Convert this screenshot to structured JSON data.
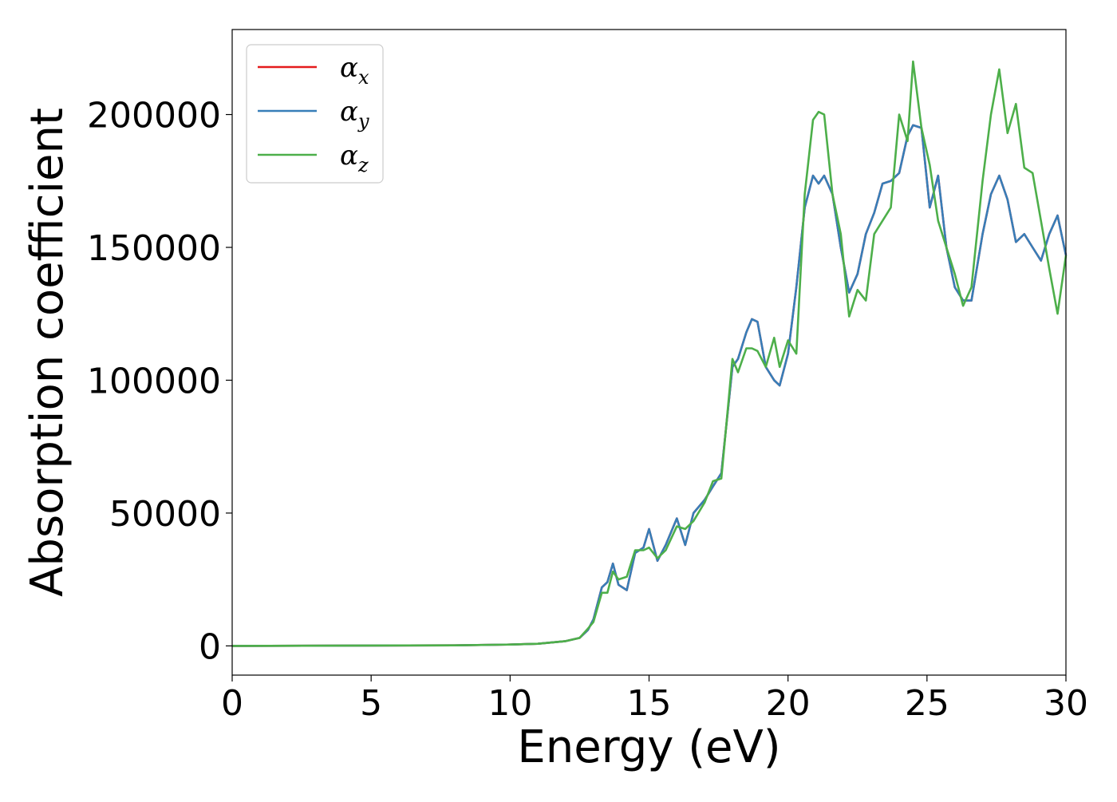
{
  "chart_data": {
    "type": "line",
    "xlabel": "Energy (eV)",
    "ylabel": "Absorption coefficient",
    "xlim": [
      0,
      30
    ],
    "ylim": [
      -11000,
      232000
    ],
    "xticks": [
      "0",
      "5",
      "10",
      "15",
      "20",
      "25",
      "30"
    ],
    "yticks": [
      "0",
      "50000",
      "100000",
      "150000",
      "200000"
    ],
    "grid": false,
    "legend_position": "top-left",
    "series": [
      {
        "name": "αx",
        "label_main": "α",
        "label_sub": "x",
        "color": "#e41a1c",
        "x": [
          0,
          8,
          10,
          11,
          12,
          12.5,
          12.8,
          13.0,
          13.3,
          13.5,
          13.7,
          13.9,
          14.2,
          14.5,
          14.8,
          15.0,
          15.3,
          15.6,
          16.0,
          16.3,
          16.6,
          17.0,
          17.3,
          17.6,
          18.0,
          18.2,
          18.5,
          18.7,
          18.9,
          19.2,
          19.5,
          19.7,
          20.0,
          20.3,
          20.6,
          20.9,
          21.1,
          21.3,
          21.6,
          21.9,
          22.2,
          22.5,
          22.8,
          23.1,
          23.4,
          23.7,
          24.0,
          24.3,
          24.5,
          24.8,
          25.1,
          25.4,
          25.7,
          26.0,
          26.3,
          26.6,
          27.0,
          27.3,
          27.6,
          27.9,
          28.2,
          28.5,
          28.8,
          29.1,
          29.4,
          29.7,
          30.0
        ],
        "y": [
          0,
          200,
          500,
          800,
          1800,
          3000,
          6000,
          10000,
          22000,
          24000,
          31000,
          23000,
          21000,
          35000,
          37000,
          44000,
          32000,
          38000,
          48000,
          38000,
          50000,
          55000,
          60000,
          65000,
          105000,
          108000,
          118000,
          123000,
          122000,
          105000,
          100000,
          98000,
          110000,
          135000,
          165000,
          177000,
          174000,
          177000,
          170000,
          150000,
          133000,
          140000,
          155000,
          163000,
          174000,
          175000,
          178000,
          192000,
          196000,
          195000,
          165000,
          177000,
          150000,
          135000,
          130000,
          130000,
          155000,
          170000,
          177000,
          168000,
          152000,
          155000,
          150000,
          145000,
          155000,
          162000,
          147000
        ]
      },
      {
        "name": "αy",
        "label_main": "α",
        "label_sub": "y",
        "color": "#377eb8",
        "x": [
          0,
          8,
          10,
          11,
          12,
          12.5,
          12.8,
          13.0,
          13.3,
          13.5,
          13.7,
          13.9,
          14.2,
          14.5,
          14.8,
          15.0,
          15.3,
          15.6,
          16.0,
          16.3,
          16.6,
          17.0,
          17.3,
          17.6,
          18.0,
          18.2,
          18.5,
          18.7,
          18.9,
          19.2,
          19.5,
          19.7,
          20.0,
          20.3,
          20.6,
          20.9,
          21.1,
          21.3,
          21.6,
          21.9,
          22.2,
          22.5,
          22.8,
          23.1,
          23.4,
          23.7,
          24.0,
          24.3,
          24.5,
          24.8,
          25.1,
          25.4,
          25.7,
          26.0,
          26.3,
          26.6,
          27.0,
          27.3,
          27.6,
          27.9,
          28.2,
          28.5,
          28.8,
          29.1,
          29.4,
          29.7,
          30.0
        ],
        "y": [
          0,
          200,
          500,
          800,
          1800,
          3000,
          6000,
          10000,
          22000,
          24000,
          31000,
          23000,
          21000,
          35000,
          37000,
          44000,
          32000,
          38000,
          48000,
          38000,
          50000,
          55000,
          60000,
          65000,
          105000,
          108000,
          118000,
          123000,
          122000,
          105000,
          100000,
          98000,
          110000,
          135000,
          165000,
          177000,
          174000,
          177000,
          170000,
          150000,
          133000,
          140000,
          155000,
          163000,
          174000,
          175000,
          178000,
          192000,
          196000,
          195000,
          165000,
          177000,
          150000,
          135000,
          130000,
          130000,
          155000,
          170000,
          177000,
          168000,
          152000,
          155000,
          150000,
          145000,
          155000,
          162000,
          147000
        ]
      },
      {
        "name": "αz",
        "label_main": "α",
        "label_sub": "z",
        "color": "#4daf4a",
        "x": [
          0,
          8,
          10,
          11,
          12,
          12.5,
          12.8,
          13.0,
          13.3,
          13.5,
          13.7,
          13.9,
          14.2,
          14.5,
          14.8,
          15.0,
          15.3,
          15.6,
          16.0,
          16.3,
          16.6,
          17.0,
          17.3,
          17.6,
          18.0,
          18.2,
          18.5,
          18.7,
          18.9,
          19.2,
          19.5,
          19.7,
          20.0,
          20.3,
          20.6,
          20.9,
          21.1,
          21.3,
          21.6,
          21.9,
          22.2,
          22.5,
          22.8,
          23.1,
          23.4,
          23.7,
          24.0,
          24.3,
          24.5,
          24.8,
          25.1,
          25.4,
          25.7,
          26.0,
          26.3,
          26.6,
          27.0,
          27.3,
          27.6,
          27.9,
          28.2,
          28.5,
          28.8,
          29.1,
          29.4,
          29.7,
          30.0
        ],
        "y": [
          0,
          200,
          500,
          800,
          1800,
          3000,
          6500,
          9000,
          20000,
          20000,
          28000,
          25000,
          26000,
          36000,
          36000,
          37000,
          33000,
          36000,
          45000,
          44000,
          47000,
          54000,
          62000,
          63000,
          108000,
          103000,
          112000,
          112000,
          111000,
          105000,
          116000,
          105000,
          115000,
          110000,
          170000,
          198000,
          201000,
          200000,
          170000,
          155000,
          124000,
          134000,
          130000,
          155000,
          160000,
          165000,
          200000,
          190000,
          220000,
          195000,
          181000,
          160000,
          150000,
          140000,
          128000,
          135000,
          175000,
          200000,
          217000,
          193000,
          204000,
          180000,
          178000,
          160000,
          142000,
          125000,
          147000
        ]
      }
    ]
  }
}
